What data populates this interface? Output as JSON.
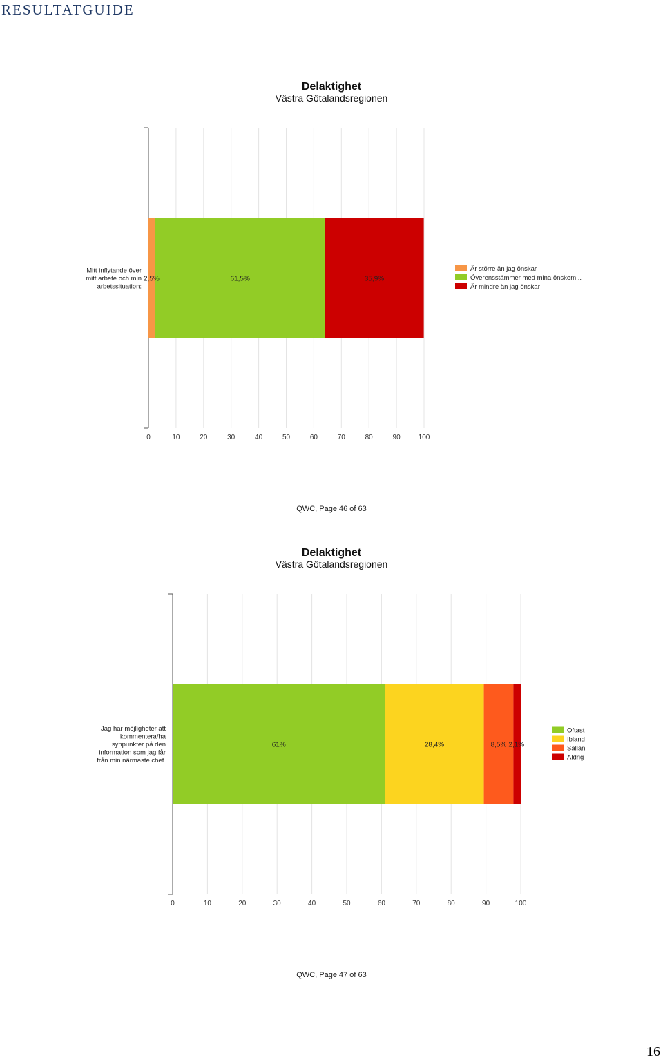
{
  "header": {
    "title": "RESULTATGUIDE"
  },
  "page_number": "16",
  "charts": [
    {
      "footer": "QWC, Page 46 of 63"
    },
    {
      "footer": "QWC, Page 47 of 63"
    }
  ],
  "chart_data": [
    {
      "type": "bar",
      "orientation": "horizontal-stacked",
      "title": "Delaktighet",
      "subtitle": "Västra Götalandsregionen",
      "categories": [
        "Mitt inflytande över mitt arbete och min arbetssituation:"
      ],
      "category_lines": [
        "Mitt inflytande över",
        "mitt arbete och min",
        "arbetssituation:"
      ],
      "series": [
        {
          "name": "Är större än jag önskar",
          "values": [
            2.5
          ],
          "label": "2,5%",
          "color": "#f79646"
        },
        {
          "name": "Överensstämmer med mina önskem...",
          "values": [
            61.5
          ],
          "label": "61,5%",
          "color": "#92cc26"
        },
        {
          "name": "Är mindre än jag önskar",
          "values": [
            35.9
          ],
          "label": "35,9%",
          "color": "#cc0000"
        }
      ],
      "xlim": [
        0,
        100
      ],
      "xticks": [
        "0",
        "10",
        "20",
        "30",
        "40",
        "50",
        "60",
        "70",
        "80",
        "90",
        "100"
      ],
      "grid": true,
      "legend": "right"
    },
    {
      "type": "bar",
      "orientation": "horizontal-stacked",
      "title": "Delaktighet",
      "subtitle": "Västra Götalandsregionen",
      "categories": [
        "Jag har möjligheter att kommentera/ha synpunkter på den information som jag får från min närmaste chef."
      ],
      "category_lines": [
        "Jag har möjligheter att",
        "kommentera/ha",
        "synpunkter på den",
        "information som jag får",
        "från min närmaste chef."
      ],
      "series": [
        {
          "name": "Oftast",
          "values": [
            61
          ],
          "label": "61%",
          "color": "#92cc26"
        },
        {
          "name": "Ibland",
          "values": [
            28.4
          ],
          "label": "28,4%",
          "color": "#fcd41f"
        },
        {
          "name": "Sällan",
          "values": [
            8.5
          ],
          "label": "8,5%",
          "color": "#fe5a1d"
        },
        {
          "name": "Aldrig",
          "values": [
            2.1
          ],
          "label": "2,1%",
          "color": "#cc0000"
        }
      ],
      "xlim": [
        0,
        100
      ],
      "xticks": [
        "0",
        "10",
        "20",
        "30",
        "40",
        "50",
        "60",
        "70",
        "80",
        "90",
        "100"
      ],
      "grid": true,
      "legend": "right"
    }
  ]
}
